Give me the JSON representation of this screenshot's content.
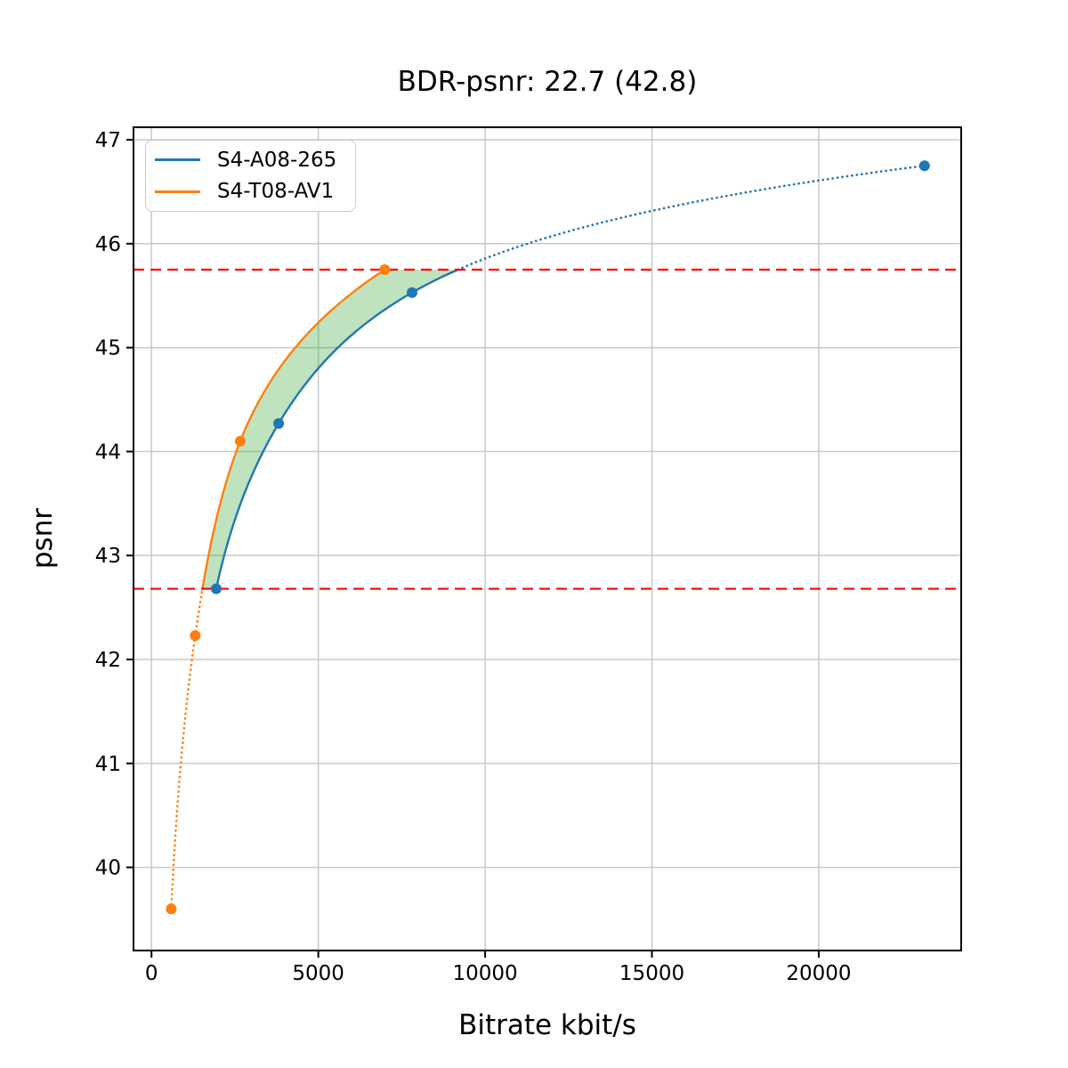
{
  "chart_data": {
    "type": "line",
    "title": "BDR-psnr: 22.7 (42.8)",
    "xlabel": "Bitrate kbit/s",
    "ylabel": "psnr",
    "xlim": [
      -540,
      24270
    ],
    "ylim": [
      39.2,
      47.12
    ],
    "x_ticks": [
      0,
      5000,
      10000,
      15000,
      20000
    ],
    "y_ticks": [
      40,
      41,
      42,
      43,
      44,
      45,
      46,
      47
    ],
    "grid": true,
    "legend_position": "upper left",
    "series": [
      {
        "name": "S4-A08-265",
        "color": "#1f77b4",
        "bitrate_kbits": [
          1940,
          3810,
          7810,
          23170
        ],
        "psnr": [
          42.68,
          44.27,
          45.53,
          46.75
        ]
      },
      {
        "name": "S4-T08-AV1",
        "color": "#ff7f0e",
        "bitrate_kbits": [
          590,
          1310,
          2660,
          6990
        ],
        "psnr": [
          39.6,
          42.23,
          44.1,
          45.75
        ]
      }
    ],
    "reference_lines": {
      "color": "#ff0000",
      "style": "dashed",
      "psnr_values": [
        42.68,
        45.75
      ]
    },
    "shaded_region": {
      "color": "#2ca02c",
      "opacity": 0.3
    },
    "axis": {
      "spine_color": "#000000",
      "grid_color": "#c9c9c9"
    }
  }
}
